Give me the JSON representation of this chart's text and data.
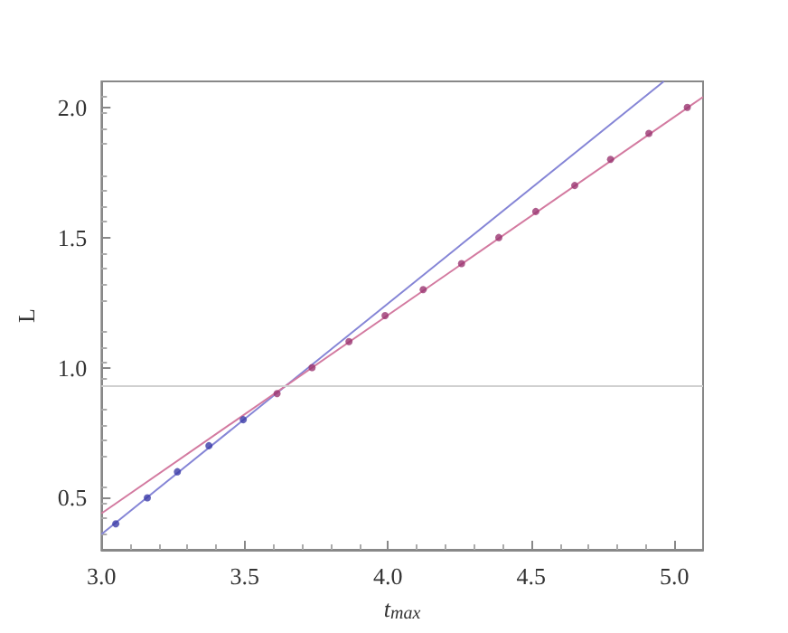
{
  "chart_data": {
    "type": "scatter",
    "xlabel": "t$_{max}$",
    "ylabel": "L",
    "xlim": [
      3.0,
      5.1
    ],
    "ylim": [
      0.3,
      2.1
    ],
    "xticks": [
      {
        "value": 3.0,
        "label": "3.0"
      },
      {
        "value": 3.5,
        "label": "3.5"
      },
      {
        "value": 4.0,
        "label": "4.0"
      },
      {
        "value": 4.5,
        "label": "4.5"
      },
      {
        "value": 5.0,
        "label": "5.0"
      }
    ],
    "yticks": [
      {
        "value": 0.5,
        "label": "0.5"
      },
      {
        "value": 1.0,
        "label": "1.0"
      },
      {
        "value": 1.5,
        "label": "1.5"
      },
      {
        "value": 2.0,
        "label": "2.0"
      }
    ],
    "grid": false,
    "marker": "circle",
    "series": [
      {
        "color": "#3b3ba8",
        "x": [
          3.05,
          3.16,
          3.265,
          3.375,
          3.495
        ],
        "values": [
          0.4,
          0.5,
          0.6,
          0.7,
          0.8
        ]
      },
      {
        "color": "#9a3570",
        "x": [
          3.613,
          3.735,
          3.864,
          3.99,
          4.123,
          4.257,
          4.387,
          4.516,
          4.652,
          4.777,
          4.911,
          5.045
        ],
        "values": [
          0.9,
          1.0,
          1.1,
          1.2,
          1.3,
          1.4,
          1.5,
          1.6,
          1.7,
          1.8,
          1.9,
          2.0
        ]
      },
      {
        "type": "line",
        "color": "#8585d6",
        "marker": "none",
        "x": [
          3.0,
          4.963
        ],
        "values": [
          0.36,
          2.1
        ]
      },
      {
        "type": "line",
        "color": "#d37aa0",
        "marker": "none",
        "x": [
          3.0,
          5.1
        ],
        "values": [
          0.44,
          2.04
        ]
      }
    ],
    "ref_lines": [
      {
        "axis": "y",
        "value": 0.93,
        "color": "#d0d0d0",
        "line_style": "solid"
      }
    ]
  }
}
